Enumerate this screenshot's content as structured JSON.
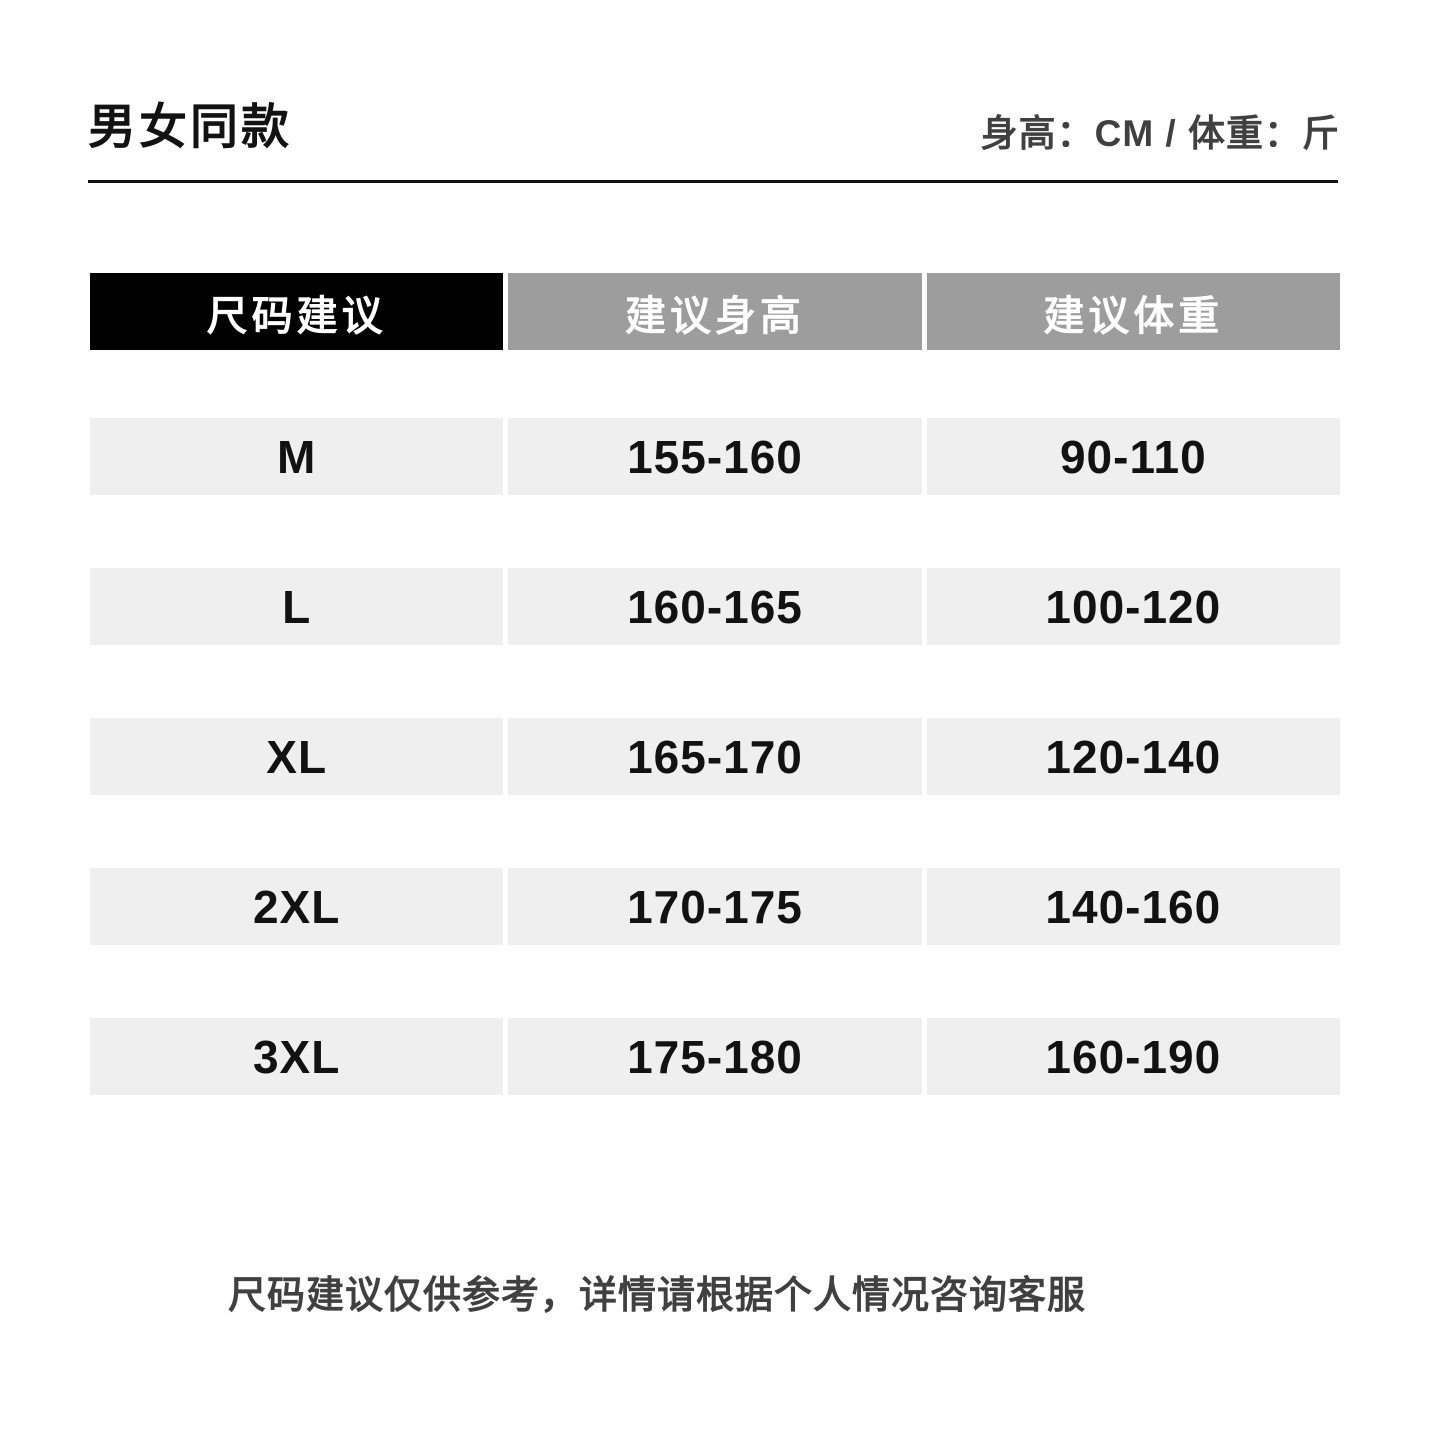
{
  "page": {
    "title": "男女同款",
    "units_label": "身高：CM / 体重：斤",
    "footnote": "尺码建议仅供参考，详情请根据个人情况咨询客服"
  },
  "size_table": {
    "columns": [
      "尺码建议",
      "建议身高",
      "建议体重"
    ],
    "rows": [
      {
        "size": "M",
        "height": "155-160",
        "weight": "90-110"
      },
      {
        "size": "L",
        "height": "160-165",
        "weight": "100-120"
      },
      {
        "size": "XL",
        "height": "165-170",
        "weight": "120-140"
      },
      {
        "size": "2XL",
        "height": "170-175",
        "weight": "140-160"
      },
      {
        "size": "3XL",
        "height": "175-180",
        "weight": "160-190"
      }
    ]
  },
  "colors": {
    "header_primary_bg": "#000000",
    "header_secondary_bg": "#9d9d9d",
    "header_text": "#ffffff",
    "row_bg": "#efefef",
    "text_dark": "#121212",
    "text_muted": "#404040",
    "background": "#ffffff"
  }
}
